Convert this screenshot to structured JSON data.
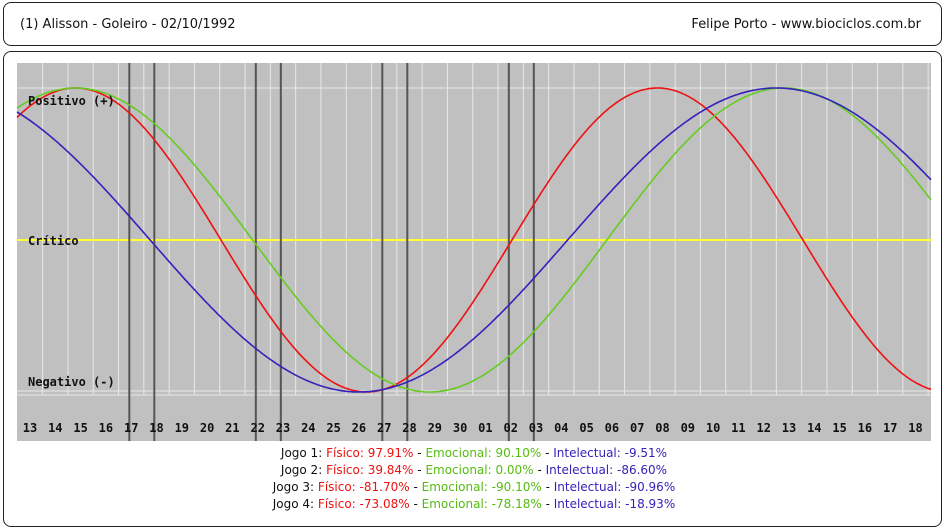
{
  "header": {
    "left": "(1)  Alisson - Goleiro -  02/10/1992",
    "right": "Felipe Porto   -   www.biociclos.com.br"
  },
  "chart_data": {
    "type": "line",
    "x_ticks": [
      "13",
      "14",
      "15",
      "16",
      "17",
      "18",
      "19",
      "20",
      "21",
      "22",
      "23",
      "24",
      "25",
      "26",
      "27",
      "28",
      "29",
      "30",
      "01",
      "02",
      "03",
      "04",
      "05",
      "06",
      "07",
      "08",
      "09",
      "10",
      "11",
      "12",
      "13",
      "14",
      "15",
      "16",
      "17",
      "18"
    ],
    "y_labels": {
      "top": "Positivo (+)",
      "middle": "Crítico",
      "bottom": "Negativo (-)"
    },
    "ylim": [
      -100,
      100
    ],
    "grid": true,
    "series": [
      {
        "name": "Físico",
        "color": "#ee1111",
        "period": 23,
        "phase_at_first_tick": 3.95
      },
      {
        "name": "Emocional",
        "color": "#66cc22",
        "period": 28,
        "phase_at_first_tick": 5.2
      },
      {
        "name": "Intelectual",
        "color": "#3322bb",
        "period": 33,
        "phase_at_first_tick": 11.75
      }
    ],
    "markers": [
      {
        "label": "Jogo 1",
        "tick_index": 4
      },
      {
        "label": "Jogo 2",
        "tick_index": 9
      },
      {
        "label": "Jogo 3",
        "tick_index": 14
      },
      {
        "label": "Jogo 4",
        "tick_index": 19
      }
    ],
    "colors": {
      "background": "#c0c0c0",
      "grid": "#e8e8e8",
      "critical_line": "#ffff33",
      "marker": "#555555"
    }
  },
  "legend": [
    {
      "label": "Jogo 1:",
      "fisico": "Físico: 97.91%",
      "emocional": "Emocional: 90.10%",
      "intelectual": "Intelectual: -9.51%"
    },
    {
      "label": "Jogo 2:",
      "fisico": "Físico: 39.84%",
      "emocional": "Emocional: 0.00%",
      "intelectual": "Intelectual: -86.60%"
    },
    {
      "label": "Jogo 3:",
      "fisico": "Físico: -81.70%",
      "emocional": "Emocional: -90.10%",
      "intelectual": "Intelectual: -90.96%"
    },
    {
      "label": "Jogo 4:",
      "fisico": "Físico: -73.08%",
      "emocional": "Emocional: -78.18%",
      "intelectual": "Intelectual: -18.93%"
    }
  ],
  "legend_colors": {
    "fisico": "#ee1111",
    "emocional": "#55bb11",
    "intelectual": "#3322bb"
  }
}
